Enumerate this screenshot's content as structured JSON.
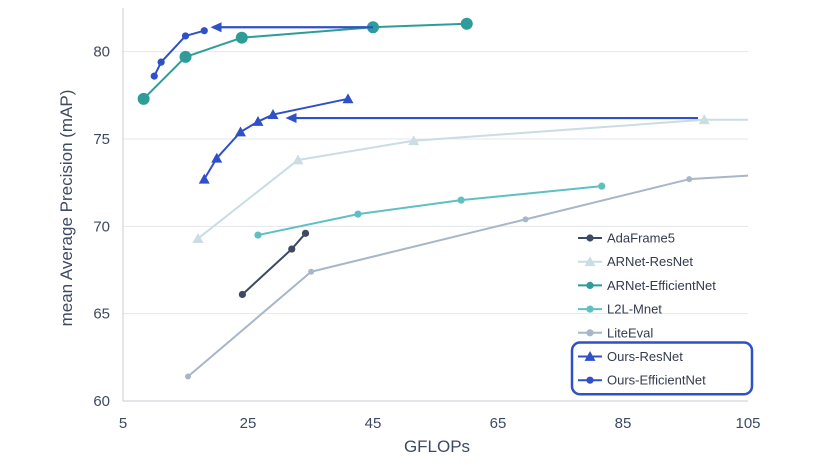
{
  "chart_data": {
    "type": "line",
    "xlabel": "GFLOPs",
    "ylabel": "mean Average Precision (mAP)",
    "xlim": [
      5,
      105
    ],
    "ylim": [
      60,
      82.5
    ],
    "xticks": [
      5,
      25,
      45,
      65,
      85,
      105
    ],
    "yticks": [
      60,
      65,
      70,
      75,
      80
    ],
    "grid": "horizontal",
    "legend_position": "bottom-right",
    "series": [
      {
        "name": "AdaFrame5",
        "color": "#3d4a63",
        "marker": "circle",
        "x": [
          24.1,
          32.0,
          34.2
        ],
        "y": [
          66.1,
          68.7,
          69.6
        ]
      },
      {
        "name": "ARNet-ResNet",
        "color": "#c9dde2",
        "marker": "triangle",
        "x": [
          17.0,
          33.0,
          51.5,
          98.0,
          105.0
        ],
        "y": [
          69.3,
          73.8,
          74.9,
          76.1,
          76.1
        ]
      },
      {
        "name": "ARNet-EfficientNet",
        "color": "#2e9c99",
        "marker": "circle-large",
        "x": [
          8.3,
          15.0,
          24.0,
          45.0,
          60.0
        ],
        "y": [
          77.3,
          79.7,
          80.8,
          81.4,
          81.6
        ]
      },
      {
        "name": "L2L-Mnet",
        "color": "#5fc0c4",
        "marker": "circle",
        "x": [
          26.6,
          42.6,
          59.1,
          81.6
        ],
        "y": [
          69.5,
          70.7,
          71.5,
          72.3
        ]
      },
      {
        "name": "LiteEval",
        "color": "#a7b6c8",
        "marker": "circle-small",
        "x": [
          15.4,
          35.1,
          69.4,
          95.6,
          105.0
        ],
        "y": [
          61.4,
          67.4,
          70.4,
          72.7,
          72.9
        ]
      },
      {
        "name": "Ours-ResNet",
        "color": "#2f50c6",
        "marker": "triangle",
        "x": [
          18.0,
          20.0,
          23.8,
          26.6,
          29.0,
          41.0
        ],
        "y": [
          72.7,
          73.9,
          75.4,
          76.0,
          76.4,
          77.3
        ]
      },
      {
        "name": "Ours-EfficientNet",
        "color": "#2f50c6",
        "marker": "circle",
        "x": [
          10.0,
          11.1,
          15.0,
          18.0
        ],
        "y": [
          78.6,
          79.4,
          80.9,
          81.2
        ]
      }
    ],
    "arrows": [
      {
        "from": {
          "x": 45.0,
          "y": 81.4
        },
        "to": {
          "x": 19.0,
          "y": 81.4
        },
        "color": "#2f50c6"
      },
      {
        "from": {
          "x": 97.0,
          "y": 76.2
        },
        "to": {
          "x": 31.0,
          "y": 76.2
        },
        "color": "#2f50c6"
      }
    ],
    "legend_highlight": [
      "Ours-ResNet",
      "Ours-EfficientNet"
    ]
  }
}
